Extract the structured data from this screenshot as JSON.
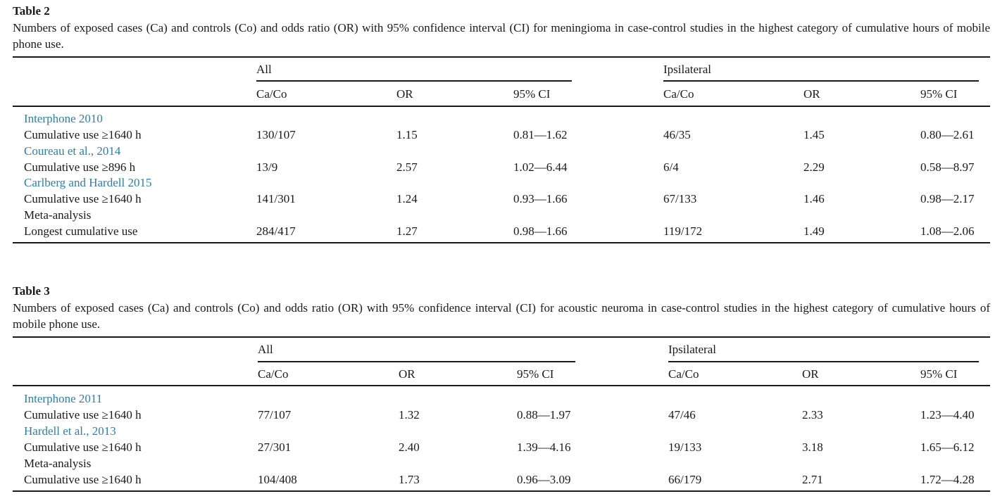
{
  "tables": [
    {
      "title": "Table 2",
      "caption": "Numbers of exposed cases (Ca) and controls (Co) and odds ratio (OR) with 95% confidence interval (CI) for meningioma in case-control studies in the highest category of cumulative hours of mobile phone use.",
      "group_headers": [
        "All",
        "Ipsilateral"
      ],
      "col_headers": [
        "Ca/Co",
        "OR",
        "95% CI",
        "Ca/Co",
        "OR",
        "95% CI"
      ],
      "rows": [
        {
          "kind": "group",
          "label": "Interphone 2010",
          "link": true
        },
        {
          "kind": "data",
          "label": "Cumulative use ≥1640 h",
          "cells": [
            "130/107",
            "1.15",
            "0.81—1.62",
            "46/35",
            "1.45",
            "0.80—2.61"
          ]
        },
        {
          "kind": "group",
          "label": "Coureau et al., 2014",
          "link": true
        },
        {
          "kind": "data",
          "label": "Cumulative use ≥896 h",
          "cells": [
            "13/9",
            "2.57",
            "1.02—6.44",
            "6/4",
            "2.29",
            "0.58—8.97"
          ]
        },
        {
          "kind": "group",
          "label": "Carlberg and Hardell 2015",
          "link": true
        },
        {
          "kind": "data",
          "label": "Cumulative use ≥1640 h",
          "cells": [
            "141/301",
            "1.24",
            "0.93—1.66",
            "67/133",
            "1.46",
            "0.98—2.17"
          ]
        },
        {
          "kind": "group",
          "label": "Meta-analysis",
          "link": false
        },
        {
          "kind": "data",
          "label": "Longest cumulative use",
          "cells": [
            "284/417",
            "1.27",
            "0.98—1.66",
            "119/172",
            "1.49",
            "1.08—2.06"
          ]
        }
      ]
    },
    {
      "title": "Table 3",
      "caption": "Numbers of exposed cases (Ca) and controls (Co) and odds ratio (OR) with 95% confidence interval (CI) for acoustic neuroma in case-control studies in the highest category of cumulative hours of mobile phone use.",
      "group_headers": [
        "All",
        "Ipsilateral"
      ],
      "col_headers": [
        "Ca/Co",
        "OR",
        "95% CI",
        "Ca/Co",
        "OR",
        "95% CI"
      ],
      "rows": [
        {
          "kind": "group",
          "label": "Interphone 2011",
          "link": true
        },
        {
          "kind": "data",
          "label": "Cumulative use ≥1640 h",
          "cells": [
            "77/107",
            "1.32",
            "0.88—1.97",
            "47/46",
            "2.33",
            "1.23—4.40"
          ]
        },
        {
          "kind": "group",
          "label": "Hardell et al., 2013",
          "link": true
        },
        {
          "kind": "data",
          "label": "Cumulative use ≥1640 h",
          "cells": [
            "27/301",
            "2.40",
            "1.39—4.16",
            "19/133",
            "3.18",
            "1.65—6.12"
          ]
        },
        {
          "kind": "group",
          "label": "Meta-analysis",
          "link": false
        },
        {
          "kind": "data",
          "label": "Cumulative use ≥1640 h",
          "cells": [
            "104/408",
            "1.73",
            "0.96—3.09",
            "66/179",
            "2.71",
            "1.72—4.28"
          ]
        }
      ]
    }
  ]
}
